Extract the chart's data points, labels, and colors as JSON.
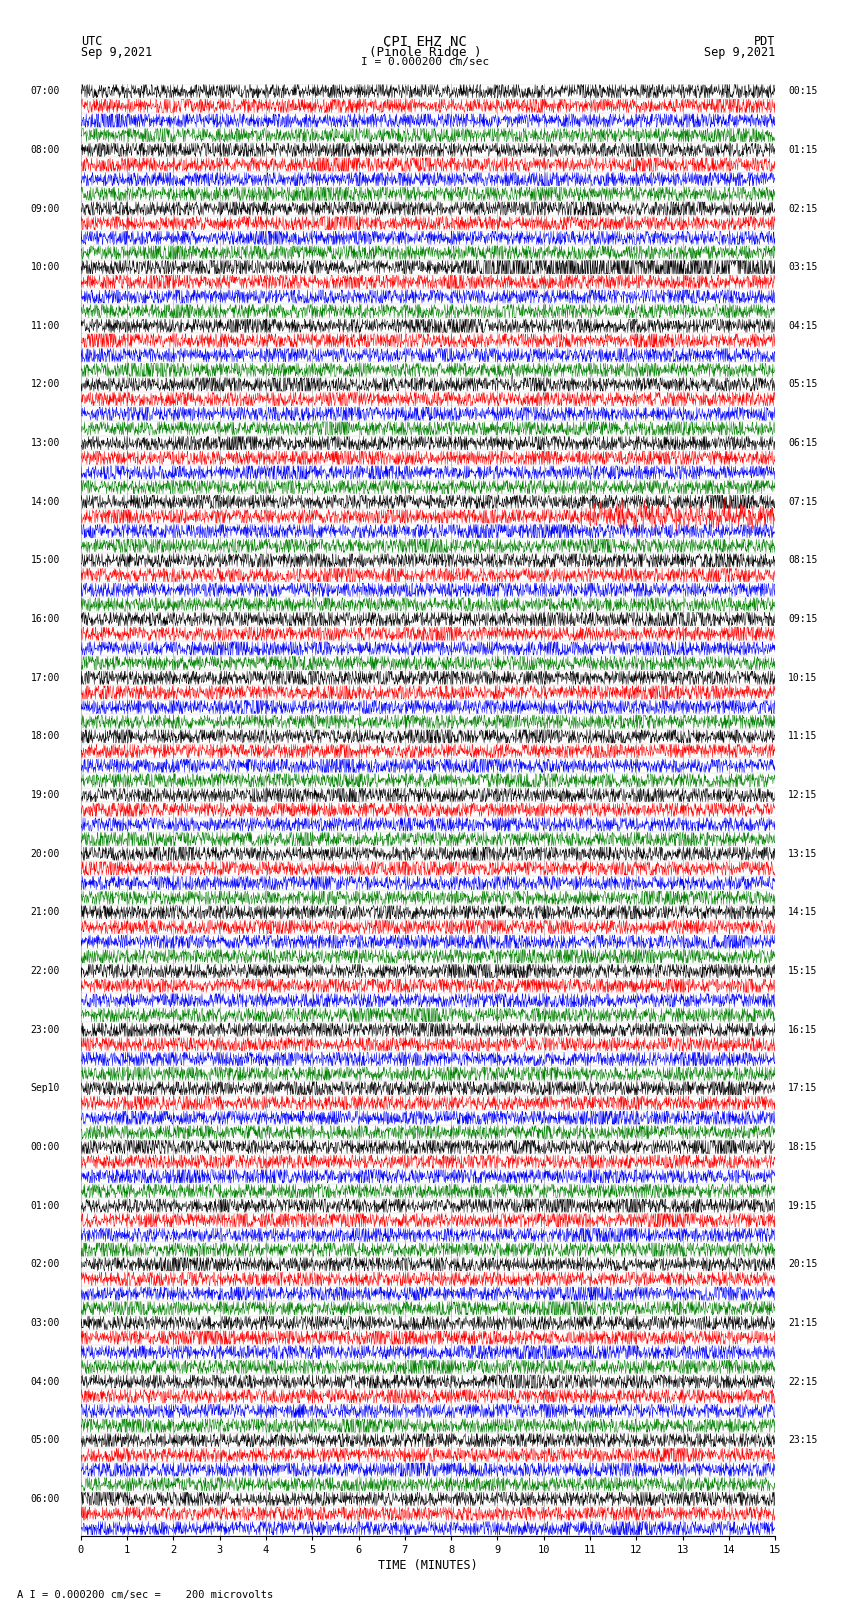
{
  "title_line1": "CPI EHZ NC",
  "title_line2": "(Pinole Ridge )",
  "scale_text": "I = 0.000200 cm/sec",
  "footer_text": "A I = 0.000200 cm/sec =    200 microvolts",
  "utc_label": "UTC",
  "utc_date": "Sep 9,2021",
  "pdt_label": "PDT",
  "pdt_date": "Sep 9,2021",
  "xlabel": "TIME (MINUTES)",
  "bg_color": "#ffffff",
  "trace_colors": [
    "black",
    "red",
    "blue",
    "green"
  ],
  "grid_color": "#888888",
  "hour_labels_left": [
    [
      0,
      "07:00"
    ],
    [
      4,
      "08:00"
    ],
    [
      8,
      "09:00"
    ],
    [
      12,
      "10:00"
    ],
    [
      16,
      "11:00"
    ],
    [
      20,
      "12:00"
    ],
    [
      24,
      "13:00"
    ],
    [
      28,
      "14:00"
    ],
    [
      32,
      "15:00"
    ],
    [
      36,
      "16:00"
    ],
    [
      40,
      "17:00"
    ],
    [
      44,
      "18:00"
    ],
    [
      48,
      "19:00"
    ],
    [
      52,
      "20:00"
    ],
    [
      56,
      "21:00"
    ],
    [
      60,
      "22:00"
    ],
    [
      64,
      "23:00"
    ],
    [
      68,
      "Sep10"
    ],
    [
      72,
      "00:00"
    ],
    [
      76,
      "01:00"
    ],
    [
      80,
      "02:00"
    ],
    [
      84,
      "03:00"
    ],
    [
      88,
      "04:00"
    ],
    [
      92,
      "05:00"
    ],
    [
      96,
      "06:00"
    ]
  ],
  "hour_labels_right": [
    [
      0,
      "00:15"
    ],
    [
      4,
      "01:15"
    ],
    [
      8,
      "02:15"
    ],
    [
      12,
      "03:15"
    ],
    [
      16,
      "04:15"
    ],
    [
      20,
      "05:15"
    ],
    [
      24,
      "06:15"
    ],
    [
      28,
      "07:15"
    ],
    [
      32,
      "08:15"
    ],
    [
      36,
      "09:15"
    ],
    [
      40,
      "10:15"
    ],
    [
      44,
      "11:15"
    ],
    [
      48,
      "12:15"
    ],
    [
      52,
      "13:15"
    ],
    [
      56,
      "14:15"
    ],
    [
      60,
      "15:15"
    ],
    [
      64,
      "16:15"
    ],
    [
      68,
      "17:15"
    ],
    [
      72,
      "18:15"
    ],
    [
      76,
      "19:15"
    ],
    [
      80,
      "20:15"
    ],
    [
      84,
      "21:15"
    ],
    [
      88,
      "22:15"
    ],
    [
      92,
      "23:15"
    ]
  ],
  "n_rows": 99,
  "xmin": 0,
  "xmax": 15,
  "xticks": [
    0,
    1,
    2,
    3,
    4,
    5,
    6,
    7,
    8,
    9,
    10,
    11,
    12,
    13,
    14,
    15
  ],
  "noise_amplitude": 0.3,
  "figwidth": 8.5,
  "figheight": 16.13
}
